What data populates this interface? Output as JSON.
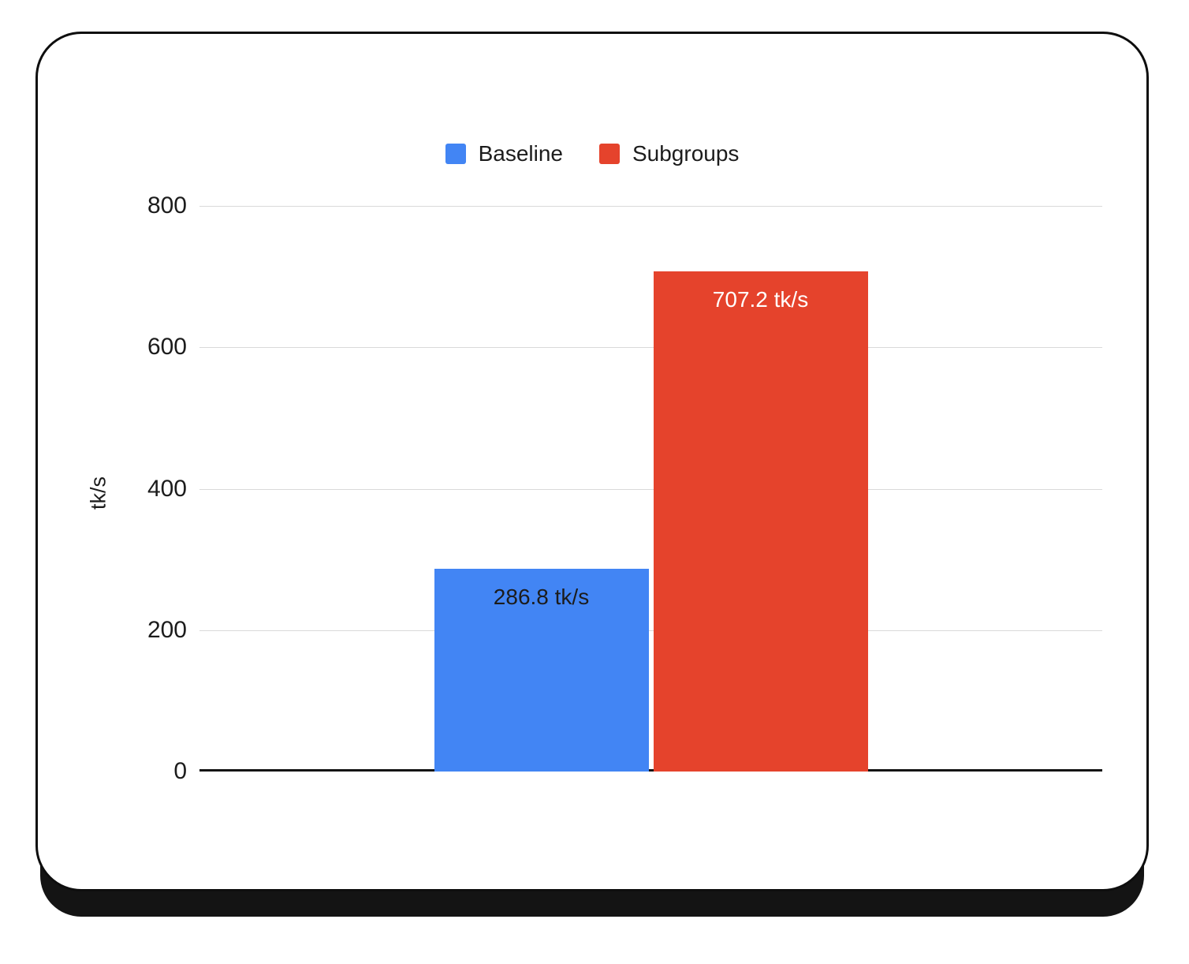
{
  "legend": {
    "items": [
      {
        "label": "Baseline",
        "color": "#4285f4"
      },
      {
        "label": "Subgroups",
        "color": "#e5432c"
      }
    ]
  },
  "chart_data": {
    "type": "bar",
    "categories": [
      "Baseline",
      "Subgroups"
    ],
    "series": [
      {
        "name": "Baseline",
        "value": 286.8,
        "data_label": "286.8 tk/s",
        "color": "#4285f4",
        "label_color": "#1c1c1c"
      },
      {
        "name": "Subgroups",
        "value": 707.2,
        "data_label": "707.2 tk/s",
        "color": "#e5432c",
        "label_color": "#ffffff"
      }
    ],
    "title": "",
    "xlabel": "",
    "ylabel": "tk/s",
    "ylim": [
      0,
      800
    ],
    "yticks": [
      0,
      200,
      400,
      600,
      800
    ],
    "grid": true,
    "legend_position": "top",
    "colors": {
      "grid": "#d9d9d9",
      "axis": "#141414",
      "text": "#1c1c1c"
    }
  }
}
